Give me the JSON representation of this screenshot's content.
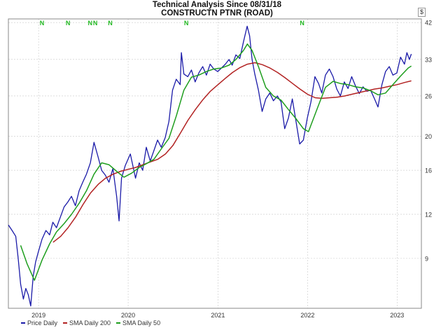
{
  "header": {
    "title": "Technical Analysis Since 08/31/18",
    "subtitle": "CONSTRUCTN PTNR (ROAD)",
    "currency_badge": "$"
  },
  "colors": {
    "price": "#1a1aa8",
    "sma200": "#b22222",
    "sma50": "#1e9e1e",
    "signal": "#22b822",
    "grid": "#c8c8c8",
    "frame": "#8a8a8a"
  },
  "chart_data": {
    "type": "line",
    "title": "Technical Analysis Since 08/31/18",
    "subtitle": "CONSTRUCTN PTNR (ROAD)",
    "xlabel": "",
    "ylabel": "",
    "y_scale": "log",
    "ylim": [
      6.5,
      43
    ],
    "y_ticks": [
      9,
      12,
      16,
      20,
      26,
      33,
      42
    ],
    "x_range": [
      "2018-08-31",
      "2023-04-10"
    ],
    "x_ticks": [
      {
        "date": "2019-01-01",
        "label": "2019"
      },
      {
        "date": "2020-01-01",
        "label": "2020"
      },
      {
        "date": "2021-01-01",
        "label": "2021"
      },
      {
        "date": "2022-01-01",
        "label": "2022"
      },
      {
        "date": "2023-01-01",
        "label": "2023"
      }
    ],
    "legend_position": "bottom-left",
    "grid": true,
    "signal_markers": {
      "label": "N",
      "dates": [
        "2019-01-15",
        "2019-05-01",
        "2019-07-30",
        "2019-08-20",
        "2019-10-20",
        "2020-08-25",
        "2021-12-10"
      ]
    },
    "series": [
      {
        "name": "Price Daily",
        "color": "#1a1aa8",
        "points": [
          [
            "2018-08-31",
            11.2
          ],
          [
            "2018-09-15",
            10.8
          ],
          [
            "2018-09-30",
            10.4
          ],
          [
            "2018-10-10",
            9.0
          ],
          [
            "2018-10-20",
            7.6
          ],
          [
            "2018-10-31",
            6.9
          ],
          [
            "2018-11-10",
            7.4
          ],
          [
            "2018-11-20",
            7.1
          ],
          [
            "2018-11-30",
            6.6
          ],
          [
            "2018-12-10",
            8.0
          ],
          [
            "2018-12-20",
            8.8
          ],
          [
            "2018-12-31",
            9.4
          ],
          [
            "2019-01-15",
            10.2
          ],
          [
            "2019-01-31",
            10.8
          ],
          [
            "2019-02-15",
            10.5
          ],
          [
            "2019-02-28",
            11.4
          ],
          [
            "2019-03-15",
            11.0
          ],
          [
            "2019-03-31",
            11.8
          ],
          [
            "2019-04-15",
            12.6
          ],
          [
            "2019-04-30",
            13.0
          ],
          [
            "2019-05-15",
            13.5
          ],
          [
            "2019-05-31",
            12.7
          ],
          [
            "2019-06-15",
            14.0
          ],
          [
            "2019-06-30",
            14.8
          ],
          [
            "2019-07-15",
            15.6
          ],
          [
            "2019-07-31",
            16.8
          ],
          [
            "2019-08-15",
            19.2
          ],
          [
            "2019-08-31",
            17.5
          ],
          [
            "2019-09-15",
            16.0
          ],
          [
            "2019-09-30",
            15.5
          ],
          [
            "2019-10-15",
            14.8
          ],
          [
            "2019-10-31",
            16.2
          ],
          [
            "2019-11-15",
            13.5
          ],
          [
            "2019-11-25",
            11.5
          ],
          [
            "2019-12-05",
            15.2
          ],
          [
            "2019-12-20",
            16.5
          ],
          [
            "2020-01-10",
            17.8
          ],
          [
            "2020-01-31",
            15.2
          ],
          [
            "2020-02-15",
            16.8
          ],
          [
            "2020-02-29",
            16.0
          ],
          [
            "2020-03-15",
            18.6
          ],
          [
            "2020-03-31",
            17.0
          ],
          [
            "2020-04-15",
            18.2
          ],
          [
            "2020-04-30",
            19.5
          ],
          [
            "2020-05-15",
            18.6
          ],
          [
            "2020-05-31",
            19.8
          ],
          [
            "2020-06-15",
            22.0
          ],
          [
            "2020-06-30",
            27.0
          ],
          [
            "2020-07-15",
            29.0
          ],
          [
            "2020-07-31",
            28.0
          ],
          [
            "2020-08-05",
            34.5
          ],
          [
            "2020-08-15",
            30.0
          ],
          [
            "2020-08-31",
            29.5
          ],
          [
            "2020-09-15",
            30.8
          ],
          [
            "2020-09-30",
            28.5
          ],
          [
            "2020-10-15",
            30.2
          ],
          [
            "2020-10-31",
            31.5
          ],
          [
            "2020-11-15",
            29.8
          ],
          [
            "2020-11-30",
            32.0
          ],
          [
            "2020-12-15",
            31.0
          ],
          [
            "2020-12-31",
            30.5
          ],
          [
            "2021-01-15",
            31.2
          ],
          [
            "2021-01-31",
            32.0
          ],
          [
            "2021-02-15",
            33.0
          ],
          [
            "2021-02-28",
            31.8
          ],
          [
            "2021-03-15",
            34.0
          ],
          [
            "2021-03-31",
            33.2
          ],
          [
            "2021-04-15",
            37.0
          ],
          [
            "2021-04-30",
            41.0
          ],
          [
            "2021-05-10",
            38.5
          ],
          [
            "2021-05-20",
            33.0
          ],
          [
            "2021-05-31",
            30.0
          ],
          [
            "2021-06-15",
            27.0
          ],
          [
            "2021-06-30",
            23.5
          ],
          [
            "2021-07-15",
            25.5
          ],
          [
            "2021-07-31",
            26.5
          ],
          [
            "2021-08-15",
            25.2
          ],
          [
            "2021-08-31",
            26.0
          ],
          [
            "2021-09-15",
            25.0
          ],
          [
            "2021-09-30",
            21.0
          ],
          [
            "2021-10-15",
            22.5
          ],
          [
            "2021-10-31",
            25.5
          ],
          [
            "2021-11-15",
            22.0
          ],
          [
            "2021-11-30",
            19.0
          ],
          [
            "2021-12-15",
            19.5
          ],
          [
            "2021-12-31",
            22.5
          ],
          [
            "2022-01-15",
            25.0
          ],
          [
            "2022-01-31",
            29.5
          ],
          [
            "2022-02-15",
            28.2
          ],
          [
            "2022-02-28",
            26.5
          ],
          [
            "2022-03-15",
            29.8
          ],
          [
            "2022-03-31",
            31.0
          ],
          [
            "2022-04-15",
            29.5
          ],
          [
            "2022-04-30",
            27.2
          ],
          [
            "2022-05-15",
            26.0
          ],
          [
            "2022-05-31",
            28.5
          ],
          [
            "2022-06-15",
            27.3
          ],
          [
            "2022-06-30",
            29.5
          ],
          [
            "2022-07-15",
            27.8
          ],
          [
            "2022-07-31",
            26.4
          ],
          [
            "2022-08-15",
            27.6
          ],
          [
            "2022-08-31",
            26.8
          ],
          [
            "2022-09-15",
            27.0
          ],
          [
            "2022-09-30",
            25.6
          ],
          [
            "2022-10-15",
            24.2
          ],
          [
            "2022-10-31",
            28.0
          ],
          [
            "2022-11-15",
            30.5
          ],
          [
            "2022-11-30",
            31.5
          ],
          [
            "2022-12-15",
            29.8
          ],
          [
            "2022-12-31",
            30.2
          ],
          [
            "2023-01-15",
            33.5
          ],
          [
            "2023-01-31",
            32.0
          ],
          [
            "2023-02-10",
            34.5
          ],
          [
            "2023-02-20",
            33.0
          ],
          [
            "2023-02-28",
            34.2
          ]
        ]
      },
      {
        "name": "SMA Daily 200",
        "color": "#b22222",
        "points": [
          [
            "2019-03-01",
            10.0
          ],
          [
            "2019-04-01",
            10.4
          ],
          [
            "2019-05-01",
            11.0
          ],
          [
            "2019-06-01",
            11.8
          ],
          [
            "2019-07-01",
            12.8
          ],
          [
            "2019-08-01",
            13.8
          ],
          [
            "2019-09-01",
            14.6
          ],
          [
            "2019-10-01",
            15.2
          ],
          [
            "2019-11-01",
            15.6
          ],
          [
            "2019-12-01",
            15.9
          ],
          [
            "2020-01-01",
            16.1
          ],
          [
            "2020-02-01",
            16.3
          ],
          [
            "2020-03-01",
            16.6
          ],
          [
            "2020-04-01",
            16.9
          ],
          [
            "2020-05-01",
            17.2
          ],
          [
            "2020-06-01",
            17.8
          ],
          [
            "2020-07-01",
            18.8
          ],
          [
            "2020-08-01",
            20.4
          ],
          [
            "2020-09-01",
            22.2
          ],
          [
            "2020-10-01",
            23.8
          ],
          [
            "2020-11-01",
            25.4
          ],
          [
            "2020-12-01",
            26.8
          ],
          [
            "2021-01-01",
            28.0
          ],
          [
            "2021-02-01",
            29.2
          ],
          [
            "2021-03-01",
            30.3
          ],
          [
            "2021-04-01",
            31.3
          ],
          [
            "2021-05-01",
            32.0
          ],
          [
            "2021-06-01",
            32.3
          ],
          [
            "2021-07-01",
            31.9
          ],
          [
            "2021-08-01",
            31.2
          ],
          [
            "2021-09-01",
            30.3
          ],
          [
            "2021-10-01",
            29.3
          ],
          [
            "2021-11-01",
            28.2
          ],
          [
            "2021-12-01",
            27.2
          ],
          [
            "2022-01-01",
            26.3
          ],
          [
            "2022-02-01",
            25.7
          ],
          [
            "2022-03-01",
            25.6
          ],
          [
            "2022-04-01",
            25.7
          ],
          [
            "2022-05-01",
            25.8
          ],
          [
            "2022-06-01",
            26.0
          ],
          [
            "2022-07-01",
            26.3
          ],
          [
            "2022-08-01",
            26.6
          ],
          [
            "2022-09-01",
            26.9
          ],
          [
            "2022-10-01",
            27.2
          ],
          [
            "2022-11-01",
            27.4
          ],
          [
            "2022-12-01",
            27.7
          ],
          [
            "2023-01-01",
            28.0
          ],
          [
            "2023-02-01",
            28.4
          ],
          [
            "2023-02-28",
            28.7
          ]
        ]
      },
      {
        "name": "SMA Daily 50",
        "color": "#1e9e1e",
        "points": [
          [
            "2018-10-20",
            9.8
          ],
          [
            "2018-11-15",
            8.7
          ],
          [
            "2018-12-15",
            7.8
          ],
          [
            "2019-01-15",
            8.9
          ],
          [
            "2019-02-15",
            9.9
          ],
          [
            "2019-03-15",
            10.7
          ],
          [
            "2019-04-15",
            11.3
          ],
          [
            "2019-05-15",
            12.0
          ],
          [
            "2019-06-15",
            12.9
          ],
          [
            "2019-07-15",
            14.0
          ],
          [
            "2019-08-15",
            15.6
          ],
          [
            "2019-09-15",
            16.8
          ],
          [
            "2019-10-15",
            16.6
          ],
          [
            "2019-11-15",
            15.9
          ],
          [
            "2019-12-15",
            15.3
          ],
          [
            "2020-01-15",
            15.7
          ],
          [
            "2020-02-15",
            16.3
          ],
          [
            "2020-03-15",
            16.7
          ],
          [
            "2020-04-15",
            17.2
          ],
          [
            "2020-05-15",
            18.4
          ],
          [
            "2020-06-15",
            19.7
          ],
          [
            "2020-07-15",
            22.8
          ],
          [
            "2020-08-15",
            27.0
          ],
          [
            "2020-09-15",
            29.4
          ],
          [
            "2020-10-15",
            29.8
          ],
          [
            "2020-11-15",
            30.5
          ],
          [
            "2020-12-15",
            31.0
          ],
          [
            "2021-01-15",
            31.2
          ],
          [
            "2021-02-15",
            31.8
          ],
          [
            "2021-03-15",
            33.0
          ],
          [
            "2021-04-15",
            35.0
          ],
          [
            "2021-05-01",
            36.5
          ],
          [
            "2021-05-20",
            35.0
          ],
          [
            "2021-06-15",
            31.5
          ],
          [
            "2021-07-15",
            27.5
          ],
          [
            "2021-08-15",
            26.0
          ],
          [
            "2021-09-15",
            25.3
          ],
          [
            "2021-10-15",
            23.8
          ],
          [
            "2021-11-15",
            22.4
          ],
          [
            "2021-12-15",
            21.0
          ],
          [
            "2022-01-05",
            20.6
          ],
          [
            "2022-02-15",
            24.5
          ],
          [
            "2022-03-15",
            27.5
          ],
          [
            "2022-04-15",
            28.6
          ],
          [
            "2022-05-15",
            28.2
          ],
          [
            "2022-06-15",
            28.0
          ],
          [
            "2022-07-15",
            27.6
          ],
          [
            "2022-08-15",
            27.4
          ],
          [
            "2022-09-15",
            26.9
          ],
          [
            "2022-10-15",
            26.2
          ],
          [
            "2022-11-15",
            26.5
          ],
          [
            "2022-12-15",
            28.0
          ],
          [
            "2023-01-15",
            29.6
          ],
          [
            "2023-02-15",
            31.2
          ],
          [
            "2023-02-28",
            31.6
          ]
        ]
      }
    ]
  }
}
